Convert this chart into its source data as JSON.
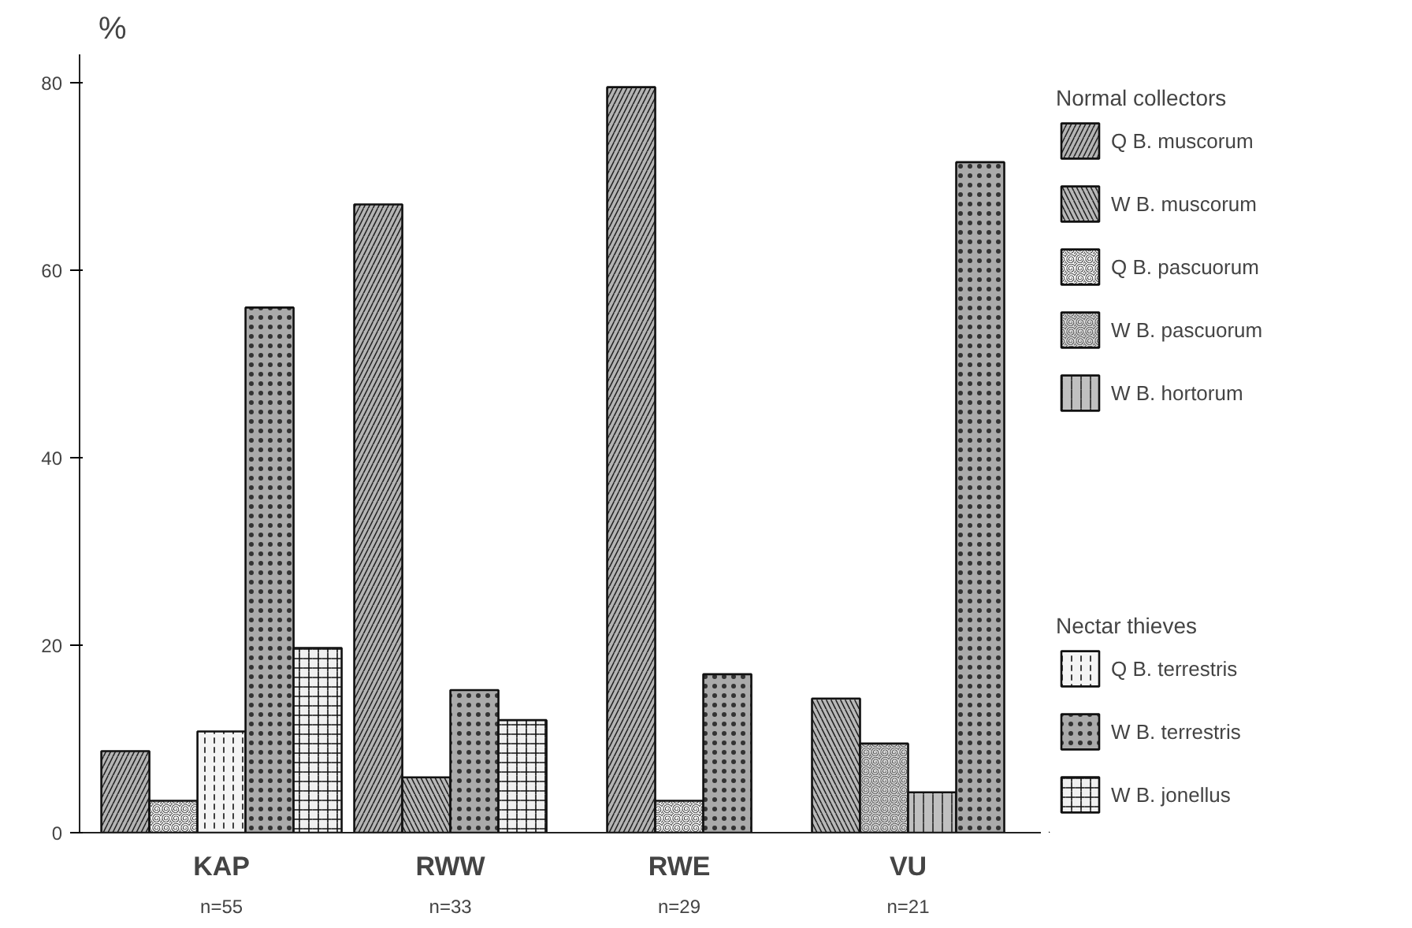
{
  "chart_data": {
    "type": "bar",
    "ylabel": "%",
    "categories": [
      "KAP",
      "RWW",
      "RWE",
      "VU"
    ],
    "series": [
      {
        "name": "Q B. muscorum",
        "color": "#b4b4b4",
        "values": [
          8.7,
          67,
          79.5,
          null
        ]
      },
      {
        "name": "W B. muscorum",
        "color": "#b8b8b8",
        "values": [
          null,
          5.9,
          null,
          14.3
        ]
      },
      {
        "name": "Q B. pascuorum",
        "color": "#303030",
        "values": [
          3.4,
          null,
          3.4,
          null
        ]
      },
      {
        "name": "W B. pascuorum",
        "color": "#4a4a4a",
        "values": [
          null,
          null,
          null,
          9.5
        ]
      },
      {
        "name": "W B. hortorum",
        "color": "#c0c0c0",
        "values": [
          null,
          null,
          null,
          4.3
        ]
      },
      {
        "name": "Q B. terrestris",
        "color": "#f4f4f4",
        "values": [
          10.8,
          null,
          null,
          null
        ]
      },
      {
        "name": "W B. terrestris",
        "color": "#aaaaaa",
        "values": [
          56,
          15.2,
          16.9,
          71.5
        ]
      },
      {
        "name": "W B. jonellus",
        "color": "#f0f0f0",
        "values": [
          19.7,
          12,
          null,
          null
        ]
      }
    ],
    "ylim": [
      0,
      83
    ],
    "yticks": [
      0,
      20,
      40,
      60,
      80
    ],
    "grid": false,
    "legend": "right",
    "annotations": [
      "Normal collectors",
      "Nectar thieves",
      "n=55",
      "n=33",
      "n=29",
      "n=21"
    ]
  }
}
